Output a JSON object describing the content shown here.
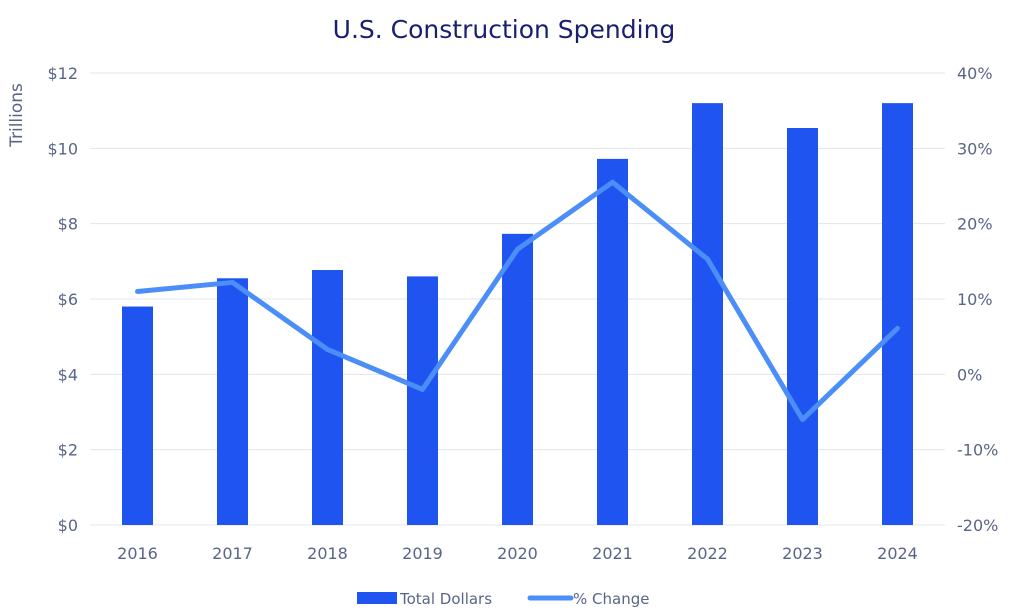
{
  "chart_data": {
    "type": "bar+line",
    "title": "U.S. Construction Spending",
    "ylabel": "Trillions",
    "ylabel_right": "",
    "categories": [
      "2016",
      "2017",
      "2018",
      "2019",
      "2020",
      "2021",
      "2022",
      "2023",
      "2024"
    ],
    "ylim": [
      0,
      12
    ],
    "yticks": [
      0,
      2,
      4,
      6,
      8,
      10,
      12
    ],
    "ytick_labels": [
      "$0",
      "$2",
      "$4",
      "$6",
      "$8",
      "$10",
      "$12"
    ],
    "y2lim": [
      -20,
      40
    ],
    "y2ticks": [
      -20,
      -10,
      0,
      10,
      20,
      30,
      40
    ],
    "y2tick_labels": [
      "-20%",
      "-10%",
      "0%",
      "10%",
      "20%",
      "30%",
      "40%"
    ],
    "grid": true,
    "legend_position": "bottom",
    "series": [
      {
        "name": "Total Dollars",
        "type": "bar",
        "axis": "left",
        "color": "#1f54f0",
        "values": [
          5.8,
          6.55,
          6.77,
          6.6,
          7.73,
          9.72,
          11.2,
          10.54,
          11.2
        ]
      },
      {
        "name": "% Change",
        "type": "line",
        "axis": "right",
        "color": "#4b8ef7",
        "values": [
          11.0,
          12.2,
          3.3,
          -2.0,
          16.6,
          25.5,
          15.3,
          -6.0,
          6.1
        ]
      }
    ]
  }
}
